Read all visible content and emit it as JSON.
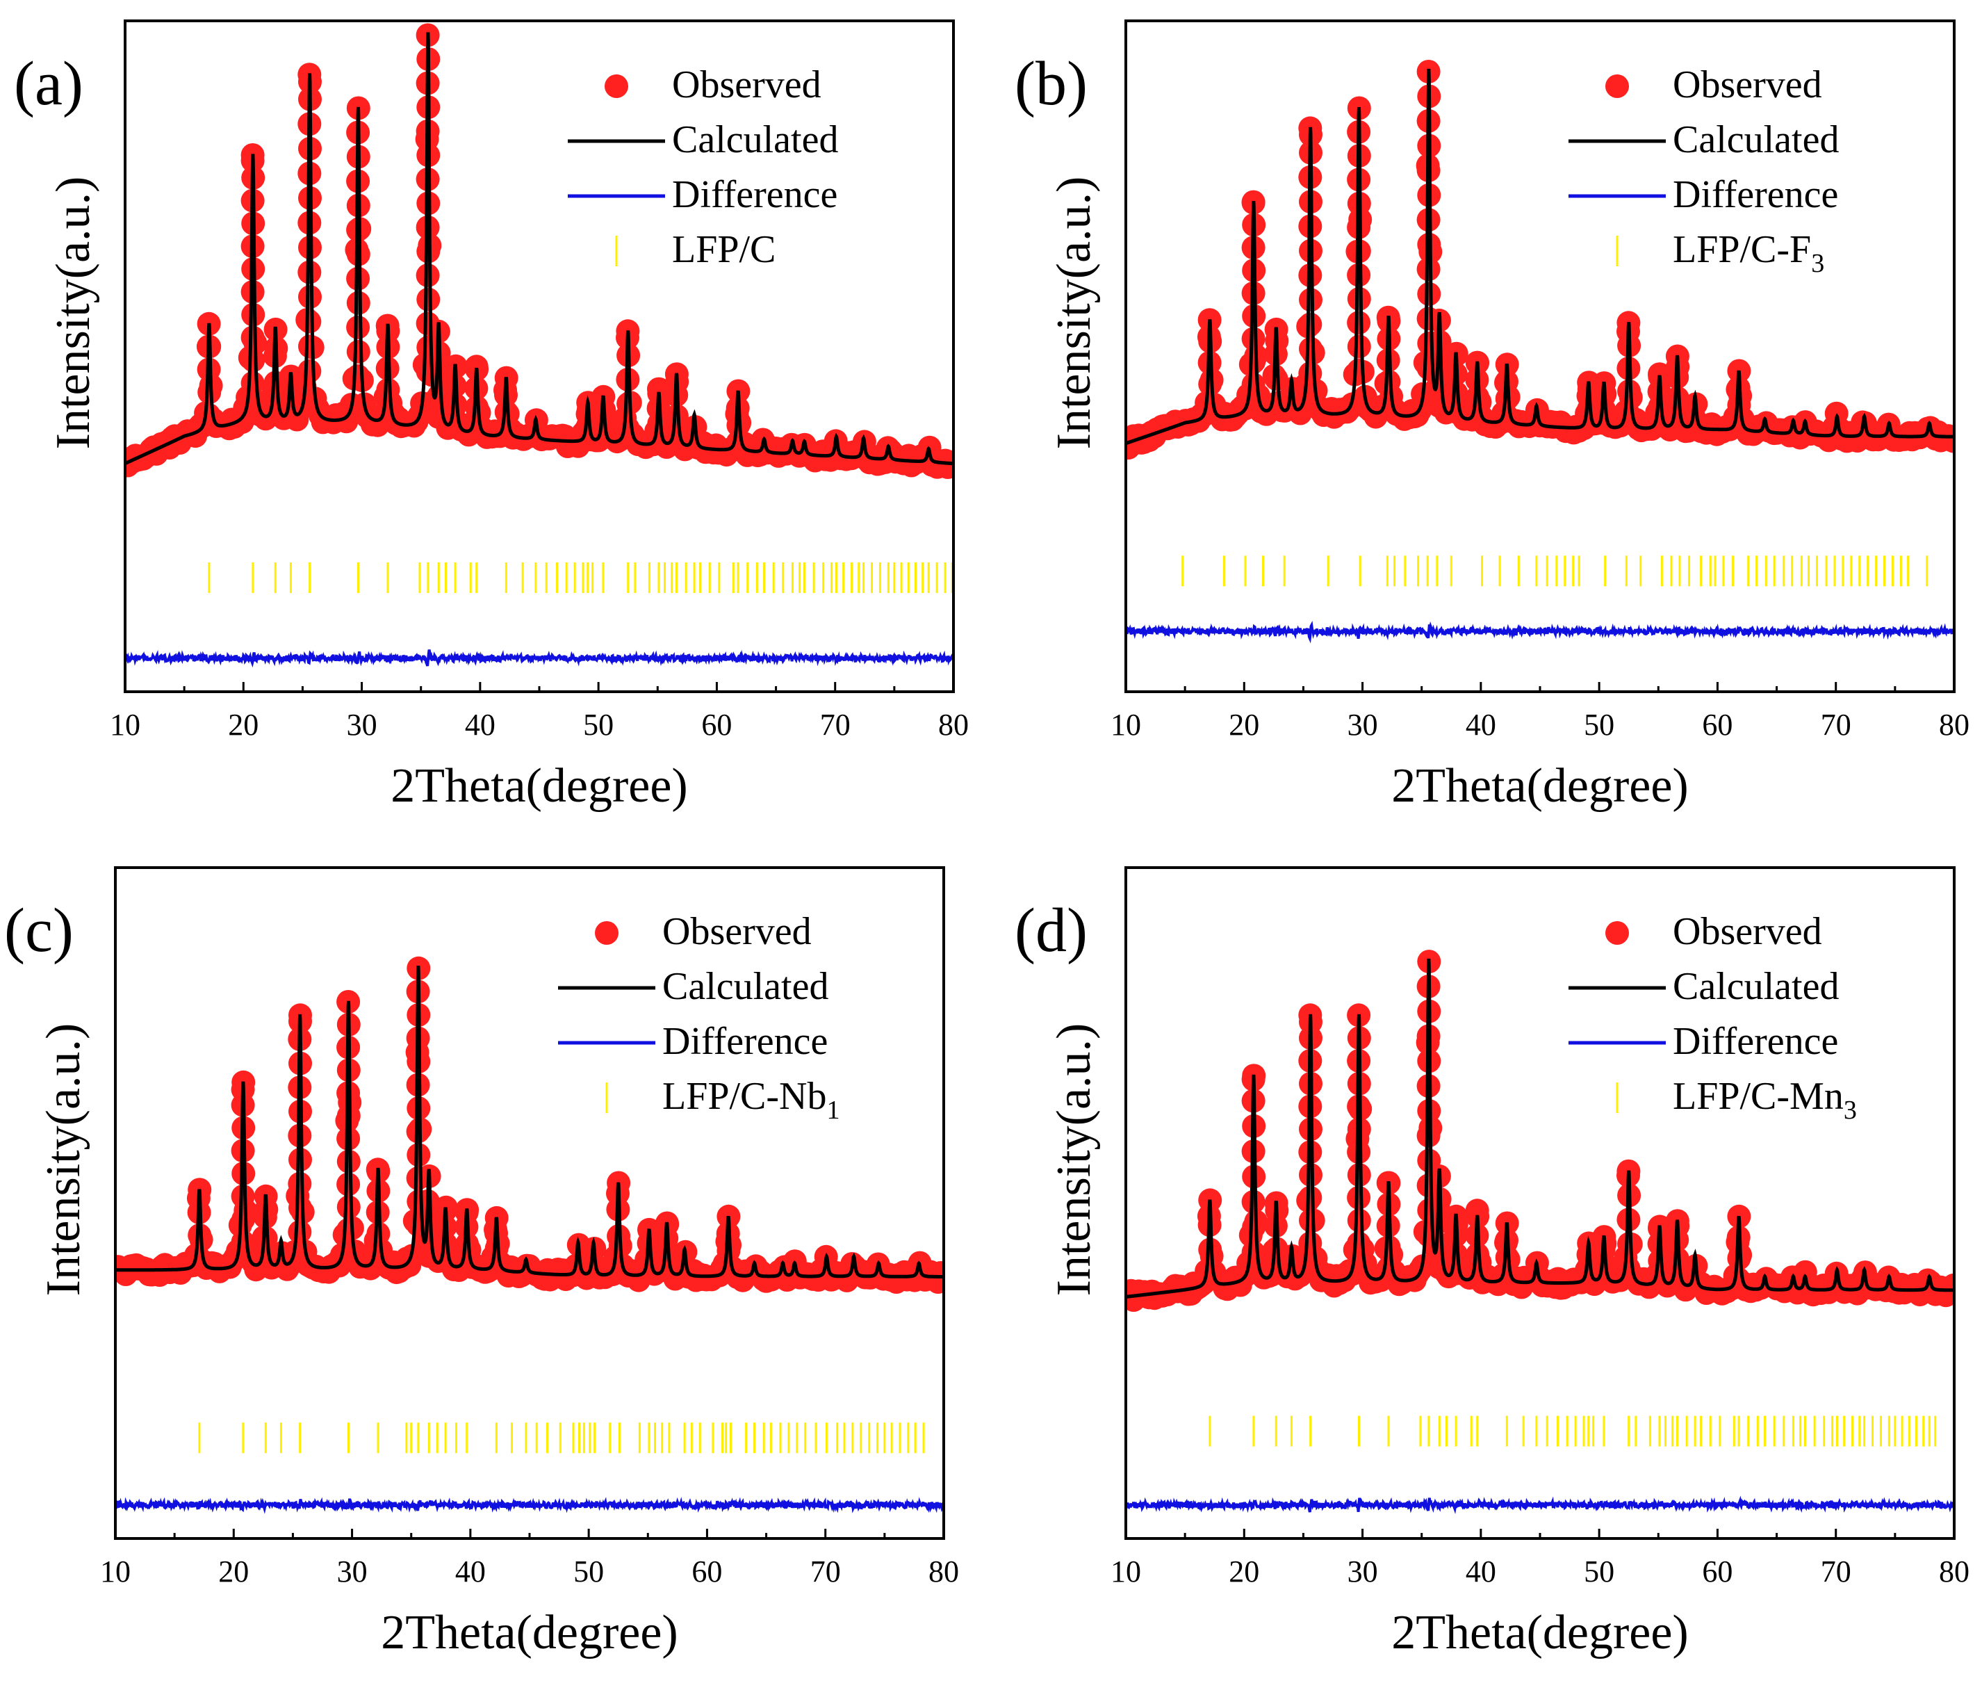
{
  "figure": {
    "layout": "2x2 grid of Rietveld refinement XRD patterns"
  },
  "colors": {
    "observed": "#ff2020",
    "calculated": "#000000",
    "difference": "#1010e0",
    "bragg": "#ffee00",
    "axis": "#000000"
  },
  "chart_data": [
    {
      "panel_label": "(a)",
      "type": "line",
      "xlabel": "2Theta(degree)",
      "ylabel": "Intensity(a.u.)",
      "xlim": [
        10,
        80
      ],
      "xticks": [
        10,
        20,
        30,
        40,
        50,
        60,
        70,
        80
      ],
      "xtick_labels": [
        "10",
        "20",
        "30",
        "40",
        "50",
        "60",
        "70",
        "80"
      ],
      "ylim": [
        0,
        100
      ],
      "legend": {
        "position": "top-right",
        "observed": "Observed",
        "calculated": "Calculated",
        "difference": "Difference",
        "phase": "LFP/C",
        "phase_sub": ""
      },
      "baseline": {
        "x": [
          10,
          15,
          20,
          30,
          40,
          50,
          60,
          70,
          80
        ],
        "y": [
          34,
          38,
          40,
          40,
          38,
          37,
          36,
          35,
          34
        ]
      },
      "peaks": [
        {
          "x": 17.1,
          "h": 16
        },
        {
          "x": 20.8,
          "h": 40
        },
        {
          "x": 22.7,
          "h": 14
        },
        {
          "x": 24.0,
          "h": 7
        },
        {
          "x": 25.6,
          "h": 52
        },
        {
          "x": 29.7,
          "h": 47
        },
        {
          "x": 32.2,
          "h": 15
        },
        {
          "x": 35.6,
          "h": 59
        },
        {
          "x": 36.5,
          "h": 15
        },
        {
          "x": 37.9,
          "h": 10
        },
        {
          "x": 39.7,
          "h": 10
        },
        {
          "x": 42.2,
          "h": 9
        },
        {
          "x": 44.7,
          "h": 3
        },
        {
          "x": 49.1,
          "h": 6
        },
        {
          "x": 50.4,
          "h": 7
        },
        {
          "x": 52.5,
          "h": 17
        },
        {
          "x": 55.1,
          "h": 8
        },
        {
          "x": 56.6,
          "h": 11
        },
        {
          "x": 58.1,
          "h": 5
        },
        {
          "x": 61.8,
          "h": 9
        },
        {
          "x": 64.0,
          "h": 2
        },
        {
          "x": 66.4,
          "h": 2
        },
        {
          "x": 67.4,
          "h": 2
        },
        {
          "x": 70.1,
          "h": 3
        },
        {
          "x": 72.4,
          "h": 3
        },
        {
          "x": 74.5,
          "h": 2
        },
        {
          "x": 77.9,
          "h": 2
        }
      ],
      "bragg_level": 17,
      "difference_level": 5,
      "bragg_positions": [
        17.1,
        20.8,
        22.7,
        24.0,
        25.6,
        29.7,
        32.2,
        34.9,
        35.6,
        36.5,
        37.1,
        37.9,
        39.2,
        39.7,
        42.2,
        43.6,
        44.7,
        45.6,
        46.5,
        47.3,
        48.0,
        48.7,
        49.1,
        49.5,
        50.4,
        52.5,
        53.1,
        54.3,
        55.1,
        55.6,
        56.2,
        56.6,
        57.4,
        58.1,
        58.6,
        59.4,
        60.2,
        61.4,
        61.8,
        62.6,
        63.4,
        64.0,
        64.8,
        65.6,
        66.4,
        67.0,
        67.4,
        68.2,
        69.0,
        69.7,
        70.1,
        70.7,
        71.4,
        72.0,
        72.4,
        73.1,
        73.8,
        74.5,
        75.0,
        75.6,
        76.2,
        76.8,
        77.4,
        77.9,
        78.6,
        79.3,
        79.9
      ]
    },
    {
      "panel_label": "(b)",
      "type": "line",
      "xlabel": "2Theta(degree)",
      "ylabel": "Intensity(a.u.)",
      "xlim": [
        10,
        80
      ],
      "xticks": [
        10,
        20,
        30,
        40,
        50,
        60,
        70,
        80
      ],
      "xtick_labels": [
        "10",
        "20",
        "30",
        "40",
        "50",
        "60",
        "70",
        "80"
      ],
      "ylim": [
        0,
        100
      ],
      "legend": {
        "position": "top-right",
        "observed": "Observed",
        "calculated": "Calculated",
        "difference": "Difference",
        "phase": "LFP/C-F",
        "phase_sub": "3"
      },
      "baseline": {
        "x": [
          10,
          15,
          20,
          30,
          40,
          50,
          60,
          70,
          80
        ],
        "y": [
          37,
          40,
          41,
          41,
          40,
          39,
          39,
          38,
          38
        ]
      },
      "peaks": [
        {
          "x": 17.1,
          "h": 15
        },
        {
          "x": 20.8,
          "h": 32
        },
        {
          "x": 22.7,
          "h": 13
        },
        {
          "x": 24.0,
          "h": 5
        },
        {
          "x": 25.6,
          "h": 43
        },
        {
          "x": 29.7,
          "h": 46
        },
        {
          "x": 32.2,
          "h": 15
        },
        {
          "x": 35.6,
          "h": 52
        },
        {
          "x": 36.5,
          "h": 15
        },
        {
          "x": 37.9,
          "h": 10
        },
        {
          "x": 39.7,
          "h": 9
        },
        {
          "x": 42.2,
          "h": 9
        },
        {
          "x": 44.7,
          "h": 3
        },
        {
          "x": 49.1,
          "h": 7
        },
        {
          "x": 50.4,
          "h": 7
        },
        {
          "x": 52.5,
          "h": 16
        },
        {
          "x": 55.1,
          "h": 8
        },
        {
          "x": 56.6,
          "h": 11
        },
        {
          "x": 58.1,
          "h": 5
        },
        {
          "x": 61.8,
          "h": 9
        },
        {
          "x": 64.0,
          "h": 2
        },
        {
          "x": 66.4,
          "h": 2
        },
        {
          "x": 67.4,
          "h": 2
        },
        {
          "x": 70.1,
          "h": 3
        },
        {
          "x": 72.4,
          "h": 3
        },
        {
          "x": 74.5,
          "h": 2
        },
        {
          "x": 77.9,
          "h": 2
        }
      ],
      "bragg_level": 18,
      "difference_level": 9,
      "bragg_positions": [
        14.8,
        18.3,
        20.1,
        21.6,
        23.4,
        27.1,
        29.8,
        32.1,
        32.7,
        33.6,
        34.7,
        35.5,
        36.3,
        37.5,
        40.1,
        41.6,
        43.2,
        44.7,
        45.6,
        46.4,
        47.1,
        47.8,
        48.3,
        50.5,
        52.3,
        53.5,
        55.3,
        56.1,
        56.8,
        57.6,
        58.6,
        59.4,
        59.8,
        60.5,
        61.3,
        62.6,
        63.3,
        64.1,
        64.8,
        65.6,
        66.3,
        67.1,
        67.7,
        68.4,
        69.2,
        69.9,
        70.6,
        71.3,
        72.0,
        72.7,
        73.4,
        74.1,
        74.8,
        75.5,
        76.1,
        77.7
      ]
    },
    {
      "panel_label": "(c)",
      "type": "line",
      "xlabel": "2Theta(degree)",
      "ylabel": "Intensity(a.u.)",
      "xlim": [
        10,
        80
      ],
      "xticks": [
        10,
        20,
        30,
        40,
        50,
        60,
        70,
        80
      ],
      "xtick_labels": [
        "10",
        "20",
        "30",
        "40",
        "50",
        "60",
        "70",
        "80"
      ],
      "ylim": [
        0,
        100
      ],
      "legend": {
        "position": "top-right",
        "observed": "Observed",
        "calculated": "Calculated",
        "difference": "Difference",
        "phase": "LFP/C-Nb",
        "phase_sub": "1"
      },
      "baseline": {
        "x": [
          10,
          15,
          20,
          30,
          40,
          50,
          60,
          70,
          80
        ],
        "y": [
          40,
          40,
          40,
          40,
          40,
          39,
          39,
          39,
          39
        ]
      },
      "peaks": [
        {
          "x": 17.1,
          "h": 12
        },
        {
          "x": 20.8,
          "h": 28
        },
        {
          "x": 22.7,
          "h": 11
        },
        {
          "x": 24.0,
          "h": 4
        },
        {
          "x": 25.6,
          "h": 38
        },
        {
          "x": 29.7,
          "h": 40
        },
        {
          "x": 32.2,
          "h": 15
        },
        {
          "x": 35.6,
          "h": 45
        },
        {
          "x": 36.5,
          "h": 14
        },
        {
          "x": 37.9,
          "h": 9
        },
        {
          "x": 39.7,
          "h": 9
        },
        {
          "x": 42.2,
          "h": 8
        },
        {
          "x": 44.7,
          "h": 2
        },
        {
          "x": 49.1,
          "h": 5
        },
        {
          "x": 50.4,
          "h": 5
        },
        {
          "x": 52.5,
          "h": 14
        },
        {
          "x": 55.1,
          "h": 7
        },
        {
          "x": 56.6,
          "h": 8
        },
        {
          "x": 58.1,
          "h": 4
        },
        {
          "x": 61.8,
          "h": 9
        },
        {
          "x": 64.0,
          "h": 2
        },
        {
          "x": 66.4,
          "h": 2
        },
        {
          "x": 67.4,
          "h": 2
        },
        {
          "x": 70.1,
          "h": 3
        },
        {
          "x": 72.4,
          "h": 3
        },
        {
          "x": 74.5,
          "h": 2
        },
        {
          "x": 77.9,
          "h": 2
        }
      ],
      "bragg_level": 15,
      "difference_level": 5,
      "bragg_positions": [
        17.1,
        20.8,
        22.7,
        24.0,
        25.6,
        29.7,
        32.2,
        34.6,
        35.0,
        35.6,
        36.5,
        37.2,
        37.9,
        38.8,
        39.7,
        42.2,
        43.5,
        44.7,
        45.6,
        46.5,
        47.6,
        48.7,
        49.2,
        49.6,
        50.1,
        50.5,
        51.8,
        52.6,
        54.3,
        55.1,
        55.6,
        56.2,
        56.8,
        58.1,
        58.7,
        59.4,
        60.5,
        61.3,
        61.6,
        62.0,
        63.3,
        64.0,
        64.8,
        65.4,
        66.2,
        66.9,
        67.6,
        68.3,
        69.2,
        70.1,
        71.0,
        71.6,
        72.3,
        73.0,
        73.7,
        74.4,
        75.0,
        75.6,
        76.3,
        77.0,
        77.6,
        78.3
      ]
    },
    {
      "panel_label": "(d)",
      "type": "line",
      "xlabel": "2Theta(degree)",
      "ylabel": "Intensity(a.u.)",
      "xlim": [
        10,
        80
      ],
      "xticks": [
        10,
        20,
        30,
        40,
        50,
        60,
        70,
        80
      ],
      "xtick_labels": [
        "10",
        "20",
        "30",
        "40",
        "50",
        "60",
        "70",
        "80"
      ],
      "ylim": [
        0,
        100
      ],
      "legend": {
        "position": "top-right",
        "observed": "Observed",
        "calculated": "Calculated",
        "difference": "Difference",
        "phase": "LFP/C-Mn",
        "phase_sub": "3"
      },
      "baseline": {
        "x": [
          10,
          15,
          20,
          30,
          40,
          50,
          60,
          70,
          80
        ],
        "y": [
          36,
          37,
          38,
          38,
          38,
          38,
          37,
          37,
          37
        ]
      },
      "peaks": [
        {
          "x": 17.1,
          "h": 13
        },
        {
          "x": 20.8,
          "h": 31
        },
        {
          "x": 22.7,
          "h": 12
        },
        {
          "x": 24.0,
          "h": 5
        },
        {
          "x": 25.6,
          "h": 40
        },
        {
          "x": 29.7,
          "h": 40
        },
        {
          "x": 32.2,
          "h": 15
        },
        {
          "x": 35.6,
          "h": 48
        },
        {
          "x": 36.5,
          "h": 16
        },
        {
          "x": 37.9,
          "h": 10
        },
        {
          "x": 39.7,
          "h": 10
        },
        {
          "x": 42.2,
          "h": 9
        },
        {
          "x": 44.7,
          "h": 3
        },
        {
          "x": 49.1,
          "h": 6
        },
        {
          "x": 50.4,
          "h": 7
        },
        {
          "x": 52.5,
          "h": 17
        },
        {
          "x": 55.1,
          "h": 9
        },
        {
          "x": 56.6,
          "h": 10
        },
        {
          "x": 58.1,
          "h": 5
        },
        {
          "x": 61.8,
          "h": 11
        },
        {
          "x": 64.0,
          "h": 2
        },
        {
          "x": 66.4,
          "h": 2
        },
        {
          "x": 67.4,
          "h": 2
        },
        {
          "x": 70.1,
          "h": 3
        },
        {
          "x": 72.4,
          "h": 3
        },
        {
          "x": 74.5,
          "h": 2
        },
        {
          "x": 77.9,
          "h": 2
        }
      ],
      "bragg_level": 16,
      "difference_level": 5,
      "bragg_positions": [
        17.1,
        20.8,
        22.7,
        24.0,
        25.6,
        29.7,
        32.2,
        34.9,
        35.6,
        36.5,
        37.1,
        37.9,
        39.2,
        39.7,
        42.2,
        43.6,
        44.7,
        45.6,
        46.5,
        47.3,
        48.0,
        48.7,
        49.1,
        49.5,
        50.4,
        52.5,
        53.1,
        54.3,
        55.1,
        55.6,
        56.2,
        56.6,
        57.4,
        58.1,
        58.6,
        59.4,
        60.2,
        61.4,
        61.8,
        62.6,
        63.4,
        64.0,
        64.8,
        65.6,
        66.4,
        67.0,
        67.4,
        68.2,
        69.0,
        69.7,
        70.1,
        70.7,
        71.4,
        72.0,
        72.4,
        73.1,
        73.8,
        74.5,
        75.0,
        75.6,
        76.2,
        76.8,
        77.4,
        77.9,
        78.4
      ]
    }
  ]
}
